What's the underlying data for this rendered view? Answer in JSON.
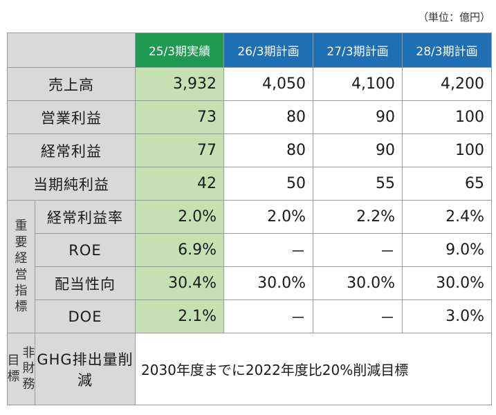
{
  "unit_note": "（単位：億円）",
  "header": {
    "actual": "25/3期実績",
    "plans": [
      "26/3期計画",
      "27/3期計画",
      "28/3期計画"
    ]
  },
  "side_labels": {
    "key_indicators": [
      "重",
      "要",
      "経",
      "営",
      "指",
      "標"
    ],
    "non_financial_right": [
      "非",
      "財",
      "務"
    ],
    "non_financial_left": [
      "目",
      "標"
    ]
  },
  "rows": [
    {
      "label": "売上高",
      "values": [
        "3,932",
        "4,050",
        "4,100",
        "4,200"
      ]
    },
    {
      "label": "営業利益",
      "values": [
        "73",
        "80",
        "90",
        "100"
      ]
    },
    {
      "label": "経常利益",
      "values": [
        "77",
        "80",
        "90",
        "100"
      ]
    },
    {
      "label": "当期純利益",
      "values": [
        "42",
        "50",
        "55",
        "65"
      ]
    },
    {
      "label": "経常利益率",
      "values": [
        "2.0%",
        "2.0%",
        "2.2%",
        "2.4%"
      ]
    },
    {
      "label": "ROE",
      "values": [
        "6.9%",
        "－",
        "－",
        "9.0%"
      ]
    },
    {
      "label": "配当性向",
      "values": [
        "30.4%",
        "30.0%",
        "30.0%",
        "30.0%"
      ]
    },
    {
      "label": "DOE",
      "values": [
        "2.1%",
        "－",
        "－",
        "3.0%"
      ]
    }
  ],
  "ghg": {
    "label": "GHG排出量削減",
    "note": "2030年度までに2022年度比20%削減目標"
  },
  "colors": {
    "actual_header": "#1e9a52",
    "plan_header": "#1f6fb5",
    "actual_cells": "#c6e0b4",
    "label_bg": "#d9d9d9"
  }
}
